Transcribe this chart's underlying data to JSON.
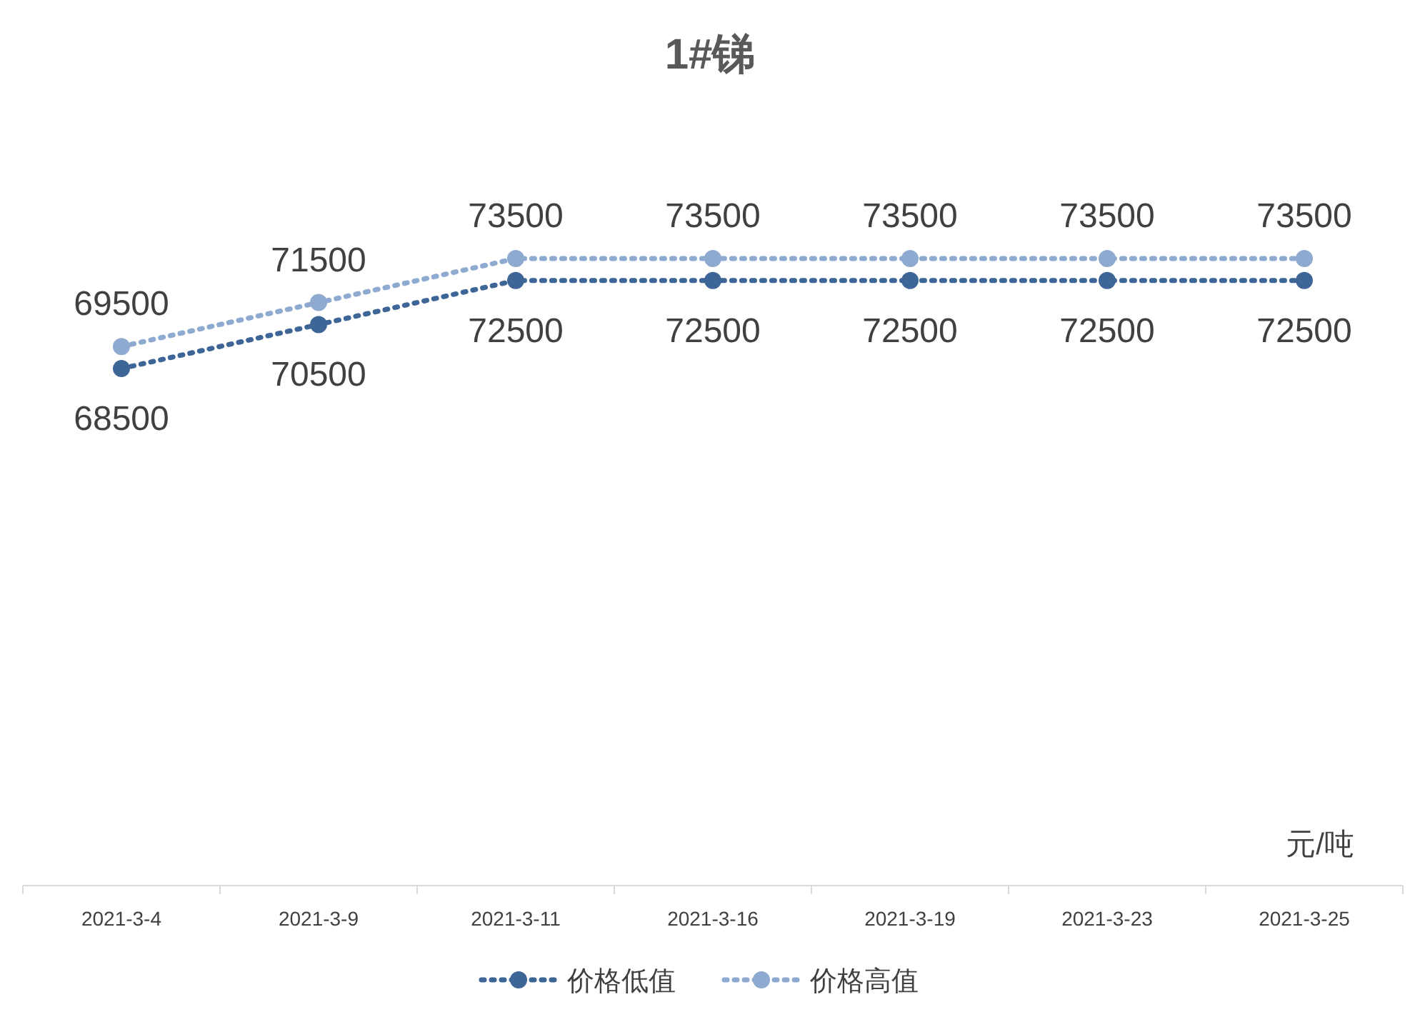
{
  "chart_data": {
    "type": "line",
    "title": "1#锑",
    "categories": [
      "2021-3-4",
      "2021-3-9",
      "2021-3-11",
      "2021-3-16",
      "2021-3-19",
      "2021-3-23",
      "2021-3-25"
    ],
    "series": [
      {
        "name": "价格低值",
        "color": "#3d6596",
        "values": [
          68500,
          70500,
          72500,
          72500,
          72500,
          72500,
          72500
        ]
      },
      {
        "name": "价格高值",
        "color": "#8eaad0",
        "values": [
          69500,
          71500,
          73500,
          73500,
          73500,
          73500,
          73500
        ]
      }
    ],
    "data_labels": true,
    "marker": "circle",
    "line_style": "dotted",
    "legend": "bottom",
    "annotations": [
      "元/吨"
    ]
  }
}
